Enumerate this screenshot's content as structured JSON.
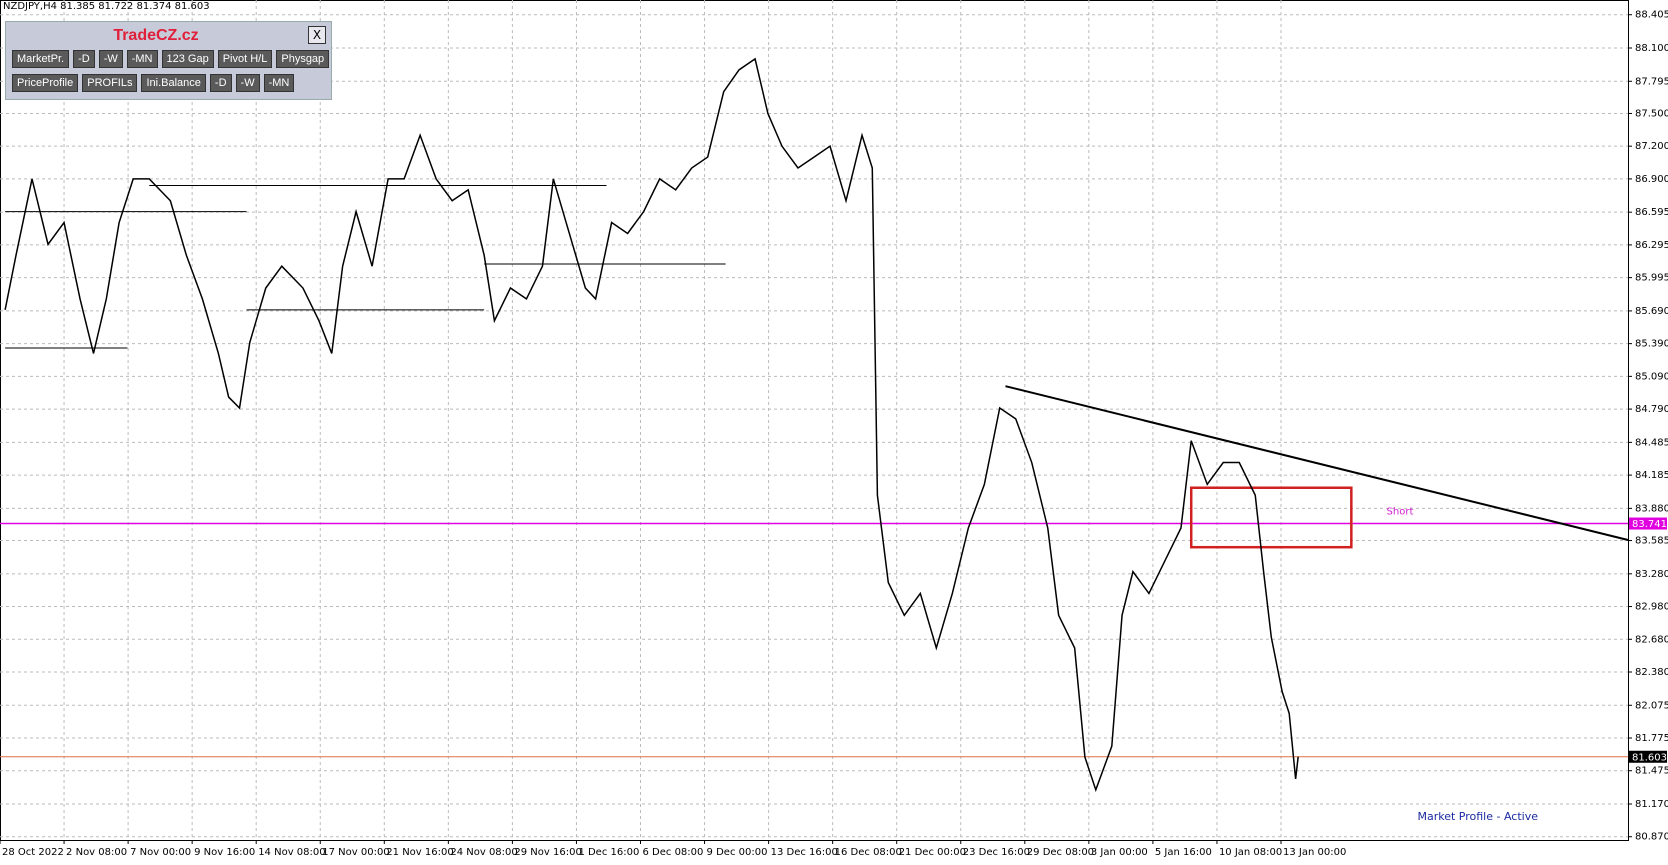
{
  "header": {
    "text": "NZDJPY,H4  81.385 81.722 81.374 81.603"
  },
  "toolbar": {
    "title": "TradeCZ.cz",
    "close": "X",
    "rows": [
      [
        "MarketPr.",
        "-D",
        "-W",
        "-MN",
        "123 Gap",
        "Pivot H/L",
        "Physgap"
      ],
      [
        "PriceProfile",
        "PROFILs",
        "Ini.Balance",
        "-D",
        "-W",
        "-MN"
      ]
    ]
  },
  "status": "Market Profile - Active",
  "chart_data": {
    "type": "line",
    "categories": [
      "28 Oct 2022",
      "2 Nov 08:00",
      "7 Nov 00:00",
      "9 Nov 16:00",
      "14 Nov 08:00",
      "17 Nov 00:00",
      "21 Nov 16:00",
      "24 Nov 08:00",
      "29 Nov 16:00",
      "1 Dec 16:00",
      "6 Dec 08:00",
      "9 Dec 00:00",
      "13 Dec 16:00",
      "16 Dec 08:00",
      "21 Dec 00:00",
      "23 Dec 16:00",
      "29 Dec 08:00",
      "3 Jan 00:00",
      "5 Jan 16:00",
      "10 Jan 08:00",
      "13 Jan 00:00"
    ],
    "xlim": [
      0,
      25.42
    ],
    "ylim": [
      80.84,
      88.54
    ],
    "yticks": [
      88.405,
      {
        "value": 88.1,
        "label": "88.100"
      },
      87.795,
      {
        "value": 87.5,
        "label": "87.500"
      },
      {
        "value": 87.2,
        "label": "87.200"
      },
      {
        "value": 86.9,
        "label": "86.900"
      },
      86.595,
      86.295,
      85.995,
      {
        "value": 85.69,
        "label": "85.690"
      },
      {
        "value": 85.39,
        "label": "85.390"
      },
      {
        "value": 85.09,
        "label": "85.090"
      },
      {
        "value": 84.79,
        "label": "84.790"
      },
      84.485,
      84.185,
      {
        "value": 83.88,
        "label": "83.880"
      },
      83.585,
      {
        "value": 83.28,
        "label": "83.280"
      },
      {
        "value": 82.98,
        "label": "82.980"
      },
      {
        "value": 82.68,
        "label": "82.680"
      },
      {
        "value": 82.38,
        "label": "82.380"
      },
      82.075,
      81.775,
      81.475,
      {
        "value": 81.17,
        "label": "81.170"
      },
      {
        "value": 80.87,
        "label": "80.870"
      }
    ],
    "grid": true,
    "price": {
      "color": "#000000",
      "x": [
        0.08,
        0.25,
        0.5,
        0.75,
        1.0,
        1.25,
        1.46,
        1.66,
        1.86,
        2.08,
        2.33,
        2.66,
        2.91,
        3.16,
        3.41,
        3.57,
        3.74,
        3.9,
        4.15,
        4.4,
        4.73,
        4.98,
        5.18,
        5.35,
        5.56,
        5.81,
        6.06,
        6.31,
        6.56,
        6.81,
        7.06,
        7.31,
        7.56,
        7.72,
        7.97,
        8.22,
        8.47,
        8.64,
        8.89,
        9.14,
        9.3,
        9.55,
        9.8,
        10.05,
        10.3,
        10.55,
        10.8,
        11.05,
        11.3,
        11.54,
        11.79,
        11.99,
        12.21,
        12.46,
        12.71,
        12.96,
        13.21,
        13.46,
        13.62,
        13.7,
        13.87,
        14.12,
        14.37,
        14.62,
        14.87,
        15.12,
        15.37,
        15.61,
        15.86,
        16.11,
        16.36,
        16.53,
        16.78,
        16.94,
        17.11,
        17.36,
        17.52,
        17.69,
        17.94,
        18.19,
        18.44,
        18.6,
        18.85,
        19.1,
        19.35,
        19.6,
        19.73,
        19.85,
        20.02,
        20.13,
        20.23,
        20.27
      ],
      "values": [
        85.7,
        86.2,
        86.9,
        86.3,
        86.5,
        85.8,
        85.3,
        85.8,
        86.5,
        86.9,
        86.9,
        86.7,
        86.2,
        85.8,
        85.3,
        84.9,
        84.8,
        85.4,
        85.9,
        86.1,
        85.9,
        85.6,
        85.3,
        86.1,
        86.6,
        86.1,
        86.9,
        86.9,
        87.3,
        86.9,
        86.7,
        86.8,
        86.2,
        85.6,
        85.9,
        85.8,
        86.1,
        86.9,
        86.4,
        85.9,
        85.8,
        86.5,
        86.4,
        86.6,
        86.9,
        86.8,
        87.0,
        87.1,
        87.7,
        87.9,
        88.0,
        87.5,
        87.2,
        87.0,
        87.1,
        87.2,
        86.7,
        87.3,
        87.0,
        84.0,
        83.2,
        82.9,
        83.1,
        82.6,
        83.1,
        83.7,
        84.1,
        84.8,
        84.7,
        84.3,
        83.7,
        82.9,
        82.6,
        81.6,
        81.3,
        81.7,
        82.9,
        83.3,
        83.1,
        83.4,
        83.7,
        84.5,
        84.1,
        84.3,
        84.3,
        84.0,
        83.3,
        82.7,
        82.2,
        82.0,
        81.4,
        81.603
      ]
    },
    "segments": [
      {
        "color": "#000000",
        "x": [
          2.33,
          9.47
        ],
        "values": [
          86.84,
          86.84
        ]
      },
      {
        "color": "#000000",
        "x": [
          0.08,
          3.85
        ],
        "values": [
          86.6,
          86.6
        ]
      },
      {
        "color": "#000000",
        "x": [
          7.56,
          11.33
        ],
        "values": [
          86.12,
          86.12
        ]
      },
      {
        "color": "#000000",
        "x": [
          3.85,
          7.56
        ],
        "values": [
          85.7,
          85.7
        ]
      },
      {
        "color": "#000000",
        "x": [
          0.08,
          1.99
        ],
        "values": [
          85.35,
          85.35
        ]
      },
      {
        "color": "#000000",
        "x": [
          15.7,
          25.42
        ],
        "values": [
          85.0,
          83.59
        ]
      }
    ],
    "levels": [
      {
        "value": 83.741,
        "color": "#e000e0"
      },
      {
        "value": 81.603,
        "color": "#e07040"
      }
    ],
    "box": {
      "color": "#d02020",
      "x": [
        18.6,
        21.1
      ],
      "values": [
        84.069,
        83.524
      ]
    },
    "annotations": [
      {
        "text": "Short",
        "color": "#d020d0",
        "x": 21.65,
        "y": 83.85
      }
    ]
  }
}
